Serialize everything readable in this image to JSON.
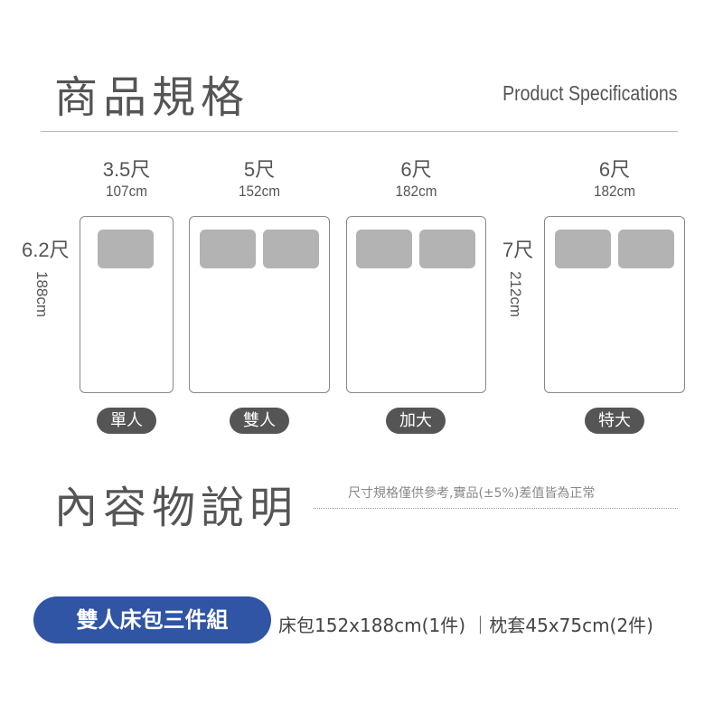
{
  "header": {
    "title": "商品規格",
    "subtitle": "Product Specifications"
  },
  "beds": [
    {
      "size": "3.5尺",
      "width": "107cm",
      "pillows": 1,
      "label": "單人"
    },
    {
      "size": "5尺",
      "width": "152cm",
      "pillows": 2,
      "label": "雙人"
    },
    {
      "size": "6尺",
      "width": "182cm",
      "pillows": 2,
      "label": "加大"
    },
    {
      "size": "6尺",
      "width": "182cm",
      "pillows": 2,
      "label": "特大"
    }
  ],
  "lengths": [
    {
      "size": "6.2尺",
      "length": "188cm"
    },
    {
      "size": "7尺",
      "length": "212cm"
    }
  ],
  "contents": {
    "title": "內容物說明",
    "note": "尺寸規格僅供參考,實品(±5%)差值皆為正常",
    "set_label": "雙人床包三件組",
    "description": "床包152x188cm(1件) ｜枕套45x75cm(2件)"
  },
  "colors": {
    "accent": "#2f55a4",
    "pill": "#555555",
    "pillow": "#b3b3b3"
  }
}
